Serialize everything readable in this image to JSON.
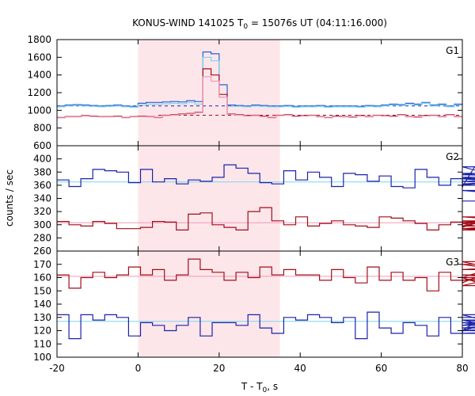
{
  "chart_data": {
    "type": "line",
    "title": {
      "prefix": "KONUS-WIND 141025 T",
      "sub": "0",
      "suffix": " = 15076s UT (04:11:16.000)"
    },
    "xlabel": {
      "prefix": "T - T",
      "sub": "0",
      "suffix": ", s"
    },
    "ylabel": "counts / sec",
    "xlim": [
      -20,
      80
    ],
    "xticks": [
      "-20",
      "0",
      "20",
      "40",
      "60",
      "80"
    ],
    "highlight": {
      "from": 0,
      "to": 35,
      "color": "#fde6ea"
    },
    "colors": {
      "high": "#1a22a8",
      "low": "#a30c18",
      "high_bg": "#7ad6f0",
      "low_bg": "#f29ab9",
      "blue_line": "#2a5fd8"
    },
    "panels": [
      {
        "name": "G1",
        "ylim": [
          600,
          1800
        ],
        "yticks": [
          "800",
          "1000",
          "1200",
          "1400",
          "1600",
          "1800"
        ],
        "extra_bottom_tick": "600",
        "bin_start": -20,
        "bin_width": 2,
        "series": [
          {
            "name": "",
            "color_key": "blue_line",
            "values": [
              1050,
              1060,
              1065,
              1060,
              1055,
              1050,
              1055,
              1060,
              1050,
              1045,
              1080,
              1090,
              1090,
              1095,
              1100,
              1095,
              1110,
              1100,
              1660,
              1640,
              1290,
              1060,
              1055,
              1050,
              1060,
              1055,
              1050,
              1050,
              1055,
              1045,
              1050,
              1050,
              1055,
              1045,
              1050,
              1050,
              1050,
              1045,
              1055,
              1050,
              1060,
              1070,
              1065,
              1080,
              1070,
              1090,
              1060,
              1070,
              1050,
              1070
            ]
          },
          {
            "name": "",
            "color_key": "high_bg",
            "values": [
              1040,
              1050,
              1055,
              1050,
              1045,
              1040,
              1045,
              1050,
              1040,
              1035,
              1060,
              1070,
              1070,
              1075,
              1080,
              1075,
              1090,
              1070,
              1600,
              1560,
              1150,
              1045,
              1045,
              1040,
              1050,
              1045,
              1040,
              1040,
              1045,
              1035,
              1040,
              1040,
              1045,
              1035,
              1040,
              1040,
              1040,
              1035,
              1045,
              1040,
              1050,
              1060,
              1055,
              1070,
              1060,
              1080,
              1050,
              1060,
              1040,
              1060
            ]
          },
          {
            "name": "",
            "color_key": "low",
            "values": [
              920,
              930,
              930,
              940,
              935,
              930,
              930,
              935,
              920,
              930,
              935,
              930,
              920,
              945,
              950,
              960,
              965,
              980,
              1470,
              1400,
              1180,
              960,
              950,
              940,
              945,
              935,
              920,
              945,
              950,
              935,
              940,
              945,
              930,
              920,
              935,
              930,
              925,
              940,
              930,
              945,
              940,
              935,
              950,
              930,
              925,
              940,
              945,
              930,
              950,
              930
            ]
          },
          {
            "name": "",
            "color_key": "low_bg",
            "values": [
              915,
              925,
              925,
              935,
              930,
              925,
              925,
              930,
              915,
              925,
              930,
              925,
              915,
              940,
              945,
              955,
              960,
              975,
              1380,
              1330,
              1150,
              955,
              945,
              935,
              940,
              930,
              915,
              940,
              945,
              930,
              935,
              940,
              925,
              915,
              930,
              925,
              920,
              935,
              925,
              940,
              935,
              930,
              945,
              925,
              920,
              935,
              940,
              925,
              945,
              925
            ]
          }
        ],
        "baselines": [
          {
            "color_key": "high",
            "value": 1050,
            "dashed": true,
            "from": -20,
            "to": 80
          },
          {
            "color_key": "low",
            "value": 945,
            "dashed": true,
            "from": 5,
            "to": 80
          }
        ]
      },
      {
        "name": "G2",
        "ylim": [
          260,
          420
        ],
        "yticks": [
          "280",
          "300",
          "320",
          "340",
          "360",
          "380",
          "400"
        ],
        "extra_bottom_tick": "260",
        "bin_start": -20,
        "bin_width": 2.944,
        "series": [
          {
            "name": "",
            "color_key": "high",
            "values": [
              368,
              358,
              370,
              384,
              382,
              380,
              364,
              384,
              365,
              370,
              362,
              368,
              366,
              372,
              391,
              386,
              378,
              364,
              362,
              382,
              368,
              380,
              372,
              358,
              378,
              376,
              366,
              374,
              358,
              356,
              384,
              372,
              360,
              370,
              358,
              388,
              378,
              372,
              362,
              366,
              360,
              376,
              372,
              370,
              352,
              336
            ]
          },
          {
            "name": "",
            "color_key": "low",
            "values": [
              305,
              300,
              298,
              305,
              302,
              294,
              294,
              296,
              305,
              304,
              292,
              316,
              318,
              300,
              296,
              292,
              320,
              326,
              306,
              300,
              312,
              298,
              302,
              306,
              300,
              298,
              296,
              312,
              310,
              306,
              302,
              292,
              300,
              304,
              296,
              302,
              294,
              298,
              312,
              306,
              302,
              304,
              292,
              302,
              304,
              298
            ]
          }
        ],
        "baselines": [
          {
            "color_key": "high_bg",
            "value": 365,
            "dashed": false,
            "from": -20,
            "to": 80
          },
          {
            "color_key": "low_bg",
            "value": 303,
            "dashed": false,
            "from": -20,
            "to": 80
          }
        ]
      },
      {
        "name": "G3",
        "ylim": [
          100,
          180
        ],
        "yticks": [
          "110",
          "120",
          "130",
          "140",
          "150",
          "160",
          "170"
        ],
        "extra_bottom_tick": "100",
        "bin_start": -20,
        "bin_width": 2.944,
        "series": [
          {
            "name": "",
            "color_key": "low",
            "values": [
              162,
              152,
              160,
              164,
              160,
              162,
              168,
              162,
              166,
              158,
              162,
              174,
              166,
              164,
              158,
              164,
              160,
              168,
              162,
              166,
              162,
              162,
              158,
              166,
              160,
              156,
              168,
              158,
              164,
              158,
              160,
              150,
              164,
              158,
              156,
              160,
              154,
              160,
              172,
              162,
              158,
              166,
              170,
              158,
              160,
              160
            ]
          },
          {
            "name": "",
            "color_key": "high",
            "values": [
              132,
              114,
              132,
              128,
              132,
              130,
              116,
              126,
              124,
              120,
              124,
              130,
              116,
              126,
              126,
              124,
              132,
              122,
              118,
              130,
              128,
              132,
              130,
              126,
              130,
              114,
              134,
              122,
              118,
              126,
              124,
              116,
              130,
              118,
              120,
              126,
              124,
              128,
              120,
              132,
              118,
              120,
              124,
              128,
              122,
              130
            ]
          }
        ],
        "baselines": [
          {
            "color_key": "high_bg",
            "value": 127,
            "dashed": false,
            "from": -20,
            "to": 80
          },
          {
            "color_key": "low_bg",
            "value": 161,
            "dashed": false,
            "from": -20,
            "to": 80
          }
        ]
      }
    ]
  }
}
